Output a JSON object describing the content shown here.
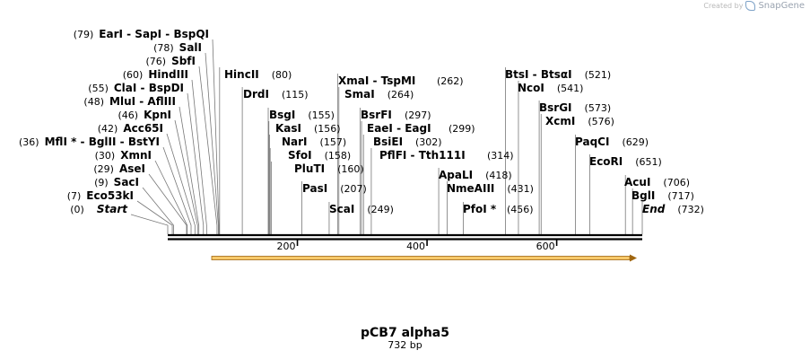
{
  "credit": {
    "created_by": "Created by",
    "brand": "SnapGene"
  },
  "plasmid": {
    "name": "pCB7 alpha5",
    "length_label": "732 bp",
    "length": 732
  },
  "colors": {
    "feature_fill": "#f7c96a",
    "feature_stroke": "#a0660f",
    "line": "#000000"
  },
  "axis_ticks": [
    "200",
    "400",
    "600"
  ],
  "sites": [
    {
      "id": "start",
      "label": "Start",
      "pos": 0,
      "pos_label": "(0)",
      "italic": true
    },
    {
      "id": "eco53ki",
      "label": "Eco53kI",
      "pos": 7,
      "pos_label": "(7)"
    },
    {
      "id": "saci",
      "label": "SacI",
      "pos": 9,
      "pos_label": "(9)"
    },
    {
      "id": "asei",
      "label": "AseI",
      "pos": 29,
      "pos_label": "(29)"
    },
    {
      "id": "xmni",
      "label": "XmnI",
      "pos": 30,
      "pos_label": "(30)"
    },
    {
      "id": "mfli",
      "label": "MflI * - BglII - BstYI",
      "pos": 36,
      "pos_label": "(36)"
    },
    {
      "id": "acc65i",
      "label": "Acc65I",
      "pos": 42,
      "pos_label": "(42)"
    },
    {
      "id": "kpni",
      "label": "KpnI",
      "pos": 46,
      "pos_label": "(46)"
    },
    {
      "id": "mlui",
      "label": "MluI - AflIII",
      "pos": 48,
      "pos_label": "(48)"
    },
    {
      "id": "clai",
      "label": "ClaI - BspDI",
      "pos": 55,
      "pos_label": "(55)"
    },
    {
      "id": "hindiii",
      "label": "HindIII",
      "pos": 60,
      "pos_label": "(60)"
    },
    {
      "id": "sbfi",
      "label": "SbfI",
      "pos": 76,
      "pos_label": "(76)"
    },
    {
      "id": "sali",
      "label": "SalI",
      "pos": 78,
      "pos_label": "(78)"
    },
    {
      "id": "eari",
      "label": "EarI - SapI - BspQI",
      "pos": 79,
      "pos_label": "(79)"
    },
    {
      "id": "hincii",
      "label": "HincII",
      "pos": 80,
      "pos_label": "(80)"
    },
    {
      "id": "drdi",
      "label": "DrdI",
      "pos": 115,
      "pos_label": "(115)"
    },
    {
      "id": "bsgi",
      "label": "BsgI",
      "pos": 155,
      "pos_label": "(155)"
    },
    {
      "id": "kasi",
      "label": "KasI",
      "pos": 156,
      "pos_label": "(156)"
    },
    {
      "id": "nari",
      "label": "NarI",
      "pos": 157,
      "pos_label": "(157)"
    },
    {
      "id": "sfoi",
      "label": "SfoI",
      "pos": 158,
      "pos_label": "(158)"
    },
    {
      "id": "pluti",
      "label": "PluTI",
      "pos": 160,
      "pos_label": "(160)"
    },
    {
      "id": "pasi",
      "label": "PasI",
      "pos": 207,
      "pos_label": "(207)"
    },
    {
      "id": "scai",
      "label": "ScaI",
      "pos": 249,
      "pos_label": "(249)"
    },
    {
      "id": "xmai",
      "label": "XmaI - TspMI",
      "pos": 262,
      "pos_label": "(262)"
    },
    {
      "id": "smai",
      "label": "SmaI",
      "pos": 264,
      "pos_label": "(264)"
    },
    {
      "id": "bsrfi",
      "label": "BsrFI",
      "pos": 297,
      "pos_label": "(297)"
    },
    {
      "id": "eaei",
      "label": "EaeI - EagI",
      "pos": 299,
      "pos_label": "(299)"
    },
    {
      "id": "bsiei",
      "label": "BsiEI",
      "pos": 302,
      "pos_label": "(302)"
    },
    {
      "id": "pflfi",
      "label": "PflFI - Tth111I",
      "pos": 314,
      "pos_label": "(314)"
    },
    {
      "id": "apali",
      "label": "ApaLI",
      "pos": 418,
      "pos_label": "(418)"
    },
    {
      "id": "nmeaiii",
      "label": "NmeAIII",
      "pos": 431,
      "pos_label": "(431)"
    },
    {
      "id": "pfoi",
      "label": "PfoI *",
      "pos": 456,
      "pos_label": "(456)"
    },
    {
      "id": "btsi",
      "label": "BtsI - BtsαI",
      "pos": 521,
      "pos_label": "(521)"
    },
    {
      "id": "ncoi",
      "label": "NcoI",
      "pos": 541,
      "pos_label": "(541)"
    },
    {
      "id": "bsrgi",
      "label": "BsrGI",
      "pos": 573,
      "pos_label": "(573)"
    },
    {
      "id": "xcmi",
      "label": "XcmI",
      "pos": 576,
      "pos_label": "(576)"
    },
    {
      "id": "paqci",
      "label": "PaqCI",
      "pos": 629,
      "pos_label": "(629)"
    },
    {
      "id": "ecori",
      "label": "EcoRI",
      "pos": 651,
      "pos_label": "(651)"
    },
    {
      "id": "acui",
      "label": "AcuI",
      "pos": 706,
      "pos_label": "(706)"
    },
    {
      "id": "bgli",
      "label": "BglI",
      "pos": 717,
      "pos_label": "(717)"
    },
    {
      "id": "end",
      "label": "End",
      "pos": 732,
      "pos_label": "(732)",
      "italic": true
    }
  ]
}
